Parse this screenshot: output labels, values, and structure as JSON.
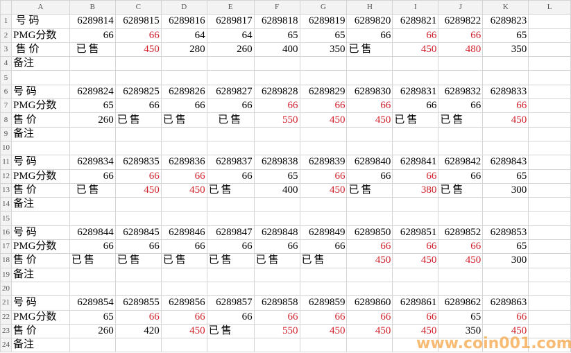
{
  "columns": [
    "A",
    "B",
    "C",
    "D",
    "E",
    "F",
    "G",
    "H",
    "I",
    "J",
    "K",
    "L"
  ],
  "rows": [
    {
      "label": " 号 码",
      "cells": [
        {
          "v": "6289814"
        },
        {
          "v": "6289815"
        },
        {
          "v": "6289816"
        },
        {
          "v": "6289817"
        },
        {
          "v": "6289818"
        },
        {
          "v": "6289819"
        },
        {
          "v": "6289820"
        },
        {
          "v": "6289821"
        },
        {
          "v": "6289822"
        },
        {
          "v": "6289823"
        }
      ]
    },
    {
      "label": "PMG分数",
      "cells": [
        {
          "v": "66"
        },
        {
          "v": "66",
          "red": true
        },
        {
          "v": "64"
        },
        {
          "v": "64"
        },
        {
          "v": "65"
        },
        {
          "v": "65"
        },
        {
          "v": "66"
        },
        {
          "v": "66",
          "red": true
        },
        {
          "v": "66",
          "red": true
        },
        {
          "v": "65"
        }
      ]
    },
    {
      "label": " 售 价",
      "cells": [
        {
          "v": " 已售"
        },
        {
          "v": "450",
          "red": true
        },
        {
          "v": "280"
        },
        {
          "v": "260"
        },
        {
          "v": "400"
        },
        {
          "v": "350"
        },
        {
          "v": "已售"
        },
        {
          "v": "450",
          "red": true
        },
        {
          "v": "480",
          "red": true
        },
        {
          "v": "350"
        }
      ]
    },
    {
      "label": "备注",
      "cells": []
    },
    {
      "label": "",
      "cells": []
    },
    {
      "label": "号 码",
      "cells": [
        {
          "v": "6289824"
        },
        {
          "v": "6289825"
        },
        {
          "v": "6289826"
        },
        {
          "v": "6289827"
        },
        {
          "v": "6289828"
        },
        {
          "v": "6289829"
        },
        {
          "v": "6289830"
        },
        {
          "v": "6289831"
        },
        {
          "v": "6289832"
        },
        {
          "v": "6289833"
        }
      ]
    },
    {
      "label": "PMG分数",
      "cells": [
        {
          "v": "65"
        },
        {
          "v": "66"
        },
        {
          "v": "66"
        },
        {
          "v": "66"
        },
        {
          "v": "66",
          "red": true
        },
        {
          "v": "66",
          "red": true
        },
        {
          "v": "66",
          "red": true
        },
        {
          "v": "66"
        },
        {
          "v": "66"
        },
        {
          "v": "66",
          "red": true
        }
      ]
    },
    {
      "label": "售 价",
      "cells": [
        {
          "v": "260"
        },
        {
          "v": "已售"
        },
        {
          "v": "已售"
        },
        {
          "v": "  已售"
        },
        {
          "v": "550",
          "red": true
        },
        {
          "v": "450",
          "red": true
        },
        {
          "v": "450",
          "red": true
        },
        {
          "v": "已售"
        },
        {
          "v": "已售"
        },
        {
          "v": "450",
          "red": true
        }
      ]
    },
    {
      "label": "备注",
      "cells": []
    },
    {
      "label": "",
      "cells": []
    },
    {
      "label": "号 码",
      "cells": [
        {
          "v": "6289834"
        },
        {
          "v": "6289835"
        },
        {
          "v": "6289836"
        },
        {
          "v": "6289837"
        },
        {
          "v": "6289838"
        },
        {
          "v": "6289839"
        },
        {
          "v": "6289840"
        },
        {
          "v": "6289841"
        },
        {
          "v": "6289842"
        },
        {
          "v": "6289843"
        }
      ]
    },
    {
      "label": "PMG分数",
      "cells": [
        {
          "v": "66"
        },
        {
          "v": "66",
          "red": true
        },
        {
          "v": "66",
          "red": true
        },
        {
          "v": "66"
        },
        {
          "v": "65"
        },
        {
          "v": "66",
          "red": true
        },
        {
          "v": "66"
        },
        {
          "v": "66",
          "red": true
        },
        {
          "v": "66"
        },
        {
          "v": "65"
        }
      ]
    },
    {
      "label": "售 价",
      "cells": [
        {
          "v": " 已售"
        },
        {
          "v": "450",
          "red": true
        },
        {
          "v": "450",
          "red": true
        },
        {
          "v": "已售"
        },
        {
          "v": "400"
        },
        {
          "v": "450",
          "red": true
        },
        {
          "v": "已售"
        },
        {
          "v": "380",
          "red": true
        },
        {
          "v": "已售"
        },
        {
          "v": "300"
        }
      ]
    },
    {
      "label": "备注",
      "cells": []
    },
    {
      "label": "",
      "cells": []
    },
    {
      "label": "号 码",
      "cells": [
        {
          "v": "6289844"
        },
        {
          "v": "6289845"
        },
        {
          "v": "6289846"
        },
        {
          "v": "6289847"
        },
        {
          "v": "6289848"
        },
        {
          "v": "6289849"
        },
        {
          "v": "6289850"
        },
        {
          "v": "6289851"
        },
        {
          "v": "6289852"
        },
        {
          "v": "6289853"
        }
      ]
    },
    {
      "label": "PMG分数",
      "cells": [
        {
          "v": "66"
        },
        {
          "v": "66"
        },
        {
          "v": "66"
        },
        {
          "v": "66"
        },
        {
          "v": "66"
        },
        {
          "v": "66"
        },
        {
          "v": "66",
          "red": true
        },
        {
          "v": "66",
          "red": true
        },
        {
          "v": "66",
          "red": true
        },
        {
          "v": "65"
        }
      ]
    },
    {
      "label": "售 价",
      "cells": [
        {
          "v": "已售"
        },
        {
          "v": "已售"
        },
        {
          "v": "已售"
        },
        {
          "v": "已售"
        },
        {
          "v": "已售"
        },
        {
          "v": "已售"
        },
        {
          "v": "450",
          "red": true
        },
        {
          "v": "450",
          "red": true
        },
        {
          "v": "450",
          "red": true
        },
        {
          "v": "300"
        }
      ]
    },
    {
      "label": "备注",
      "cells": []
    },
    {
      "label": "",
      "cells": []
    },
    {
      "label": "号 码",
      "cells": [
        {
          "v": "6289854"
        },
        {
          "v": "6289855"
        },
        {
          "v": "6289856"
        },
        {
          "v": "6289857"
        },
        {
          "v": "6289858"
        },
        {
          "v": "6289859"
        },
        {
          "v": "6289860"
        },
        {
          "v": "6289861"
        },
        {
          "v": "6289862"
        },
        {
          "v": "6289863"
        }
      ]
    },
    {
      "label": "PMG分数",
      "cells": [
        {
          "v": "65"
        },
        {
          "v": "66",
          "red": true
        },
        {
          "v": "66",
          "red": true
        },
        {
          "v": "66"
        },
        {
          "v": "66",
          "red": true
        },
        {
          "v": "66",
          "red": true
        },
        {
          "v": "66",
          "red": true
        },
        {
          "v": "66",
          "red": true
        },
        {
          "v": "65"
        },
        {
          "v": "66",
          "red": true
        }
      ]
    },
    {
      "label": "售 价",
      "cells": [
        {
          "v": "260"
        },
        {
          "v": "420"
        },
        {
          "v": "450",
          "red": true
        },
        {
          "v": "已售"
        },
        {
          "v": "550",
          "red": true
        },
        {
          "v": "450",
          "red": true
        },
        {
          "v": "450",
          "red": true
        },
        {
          "v": "450",
          "red": true
        },
        {
          "v": "350"
        },
        {
          "v": "450",
          "red": true
        }
      ]
    },
    {
      "label": "备注",
      "cells": []
    }
  ],
  "watermark": "www.coin001.com",
  "colors": {
    "highlight": "#d0202a",
    "watermark": "#f59628"
  }
}
